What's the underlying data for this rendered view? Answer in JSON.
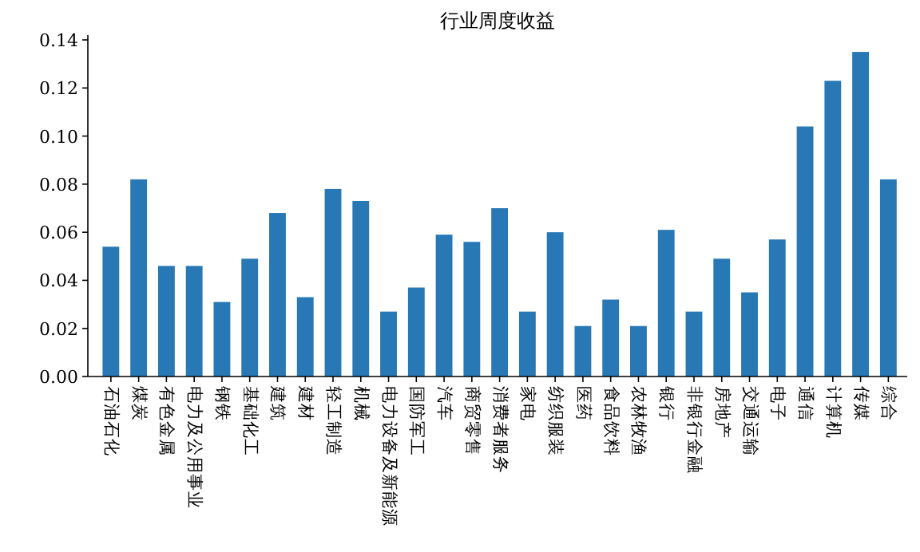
{
  "chart_data": {
    "type": "bar",
    "title": "行业周度收益",
    "categories": [
      "石油石化",
      "煤炭",
      "有色金属",
      "电力及公用事业",
      "钢铁",
      "基础化工",
      "建筑",
      "建材",
      "轻工制造",
      "机械",
      "电力设备及新能源",
      "国防军工",
      "汽车",
      "商贸零售",
      "消费者服务",
      "家电",
      "纺织服装",
      "医药",
      "食品饮料",
      "农林牧渔",
      "银行",
      "非银行金融",
      "房地产",
      "交通运输",
      "电子",
      "通信",
      "计算机",
      "传媒",
      "综合"
    ],
    "values": [
      0.054,
      0.082,
      0.046,
      0.046,
      0.031,
      0.049,
      0.068,
      0.033,
      0.078,
      0.073,
      0.027,
      0.037,
      0.059,
      0.056,
      0.07,
      0.027,
      0.06,
      0.021,
      0.032,
      0.021,
      0.061,
      0.027,
      0.049,
      0.035,
      0.057,
      0.104,
      0.123,
      0.135,
      0.082
    ],
    "color": "#2878b5",
    "ylim": [
      0,
      0.142
    ],
    "yticks": [
      {
        "value": 0,
        "label": "0.00"
      },
      {
        "value": 0.02,
        "label": "0.02"
      },
      {
        "value": 0.04,
        "label": "0.04"
      },
      {
        "value": 0.06,
        "label": "0.06"
      },
      {
        "value": 0.08,
        "label": "0.08"
      },
      {
        "value": 0.1,
        "label": "0.10"
      },
      {
        "value": 0.12,
        "label": "0.12"
      },
      {
        "value": 0.14,
        "label": "0.14"
      }
    ]
  }
}
